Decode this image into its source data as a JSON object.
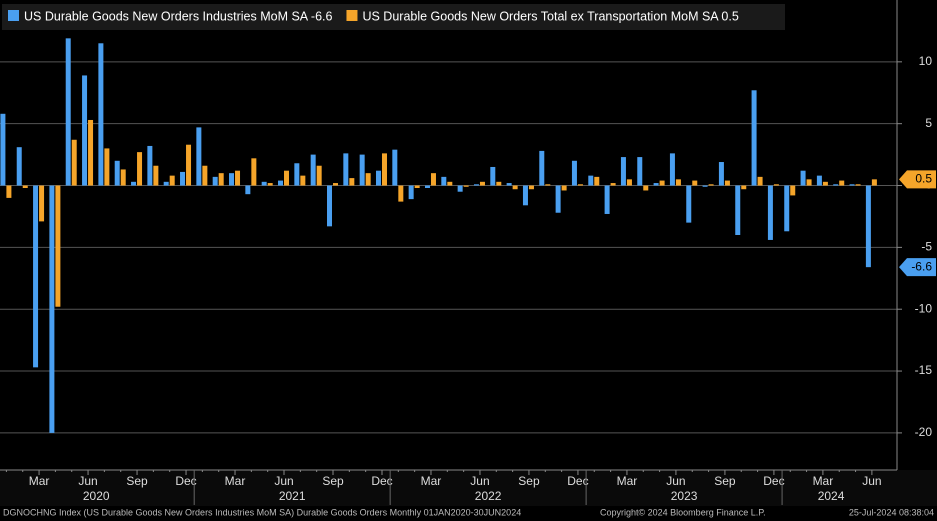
{
  "chart_data": {
    "type": "bar",
    "series": [
      {
        "name": "US Durable Goods New Orders Industries MoM SA -6.6",
        "color": "#4a9ff0",
        "values": [
          5.8,
          3.1,
          -14.7,
          -20,
          11.9,
          8.9,
          11.5,
          2.0,
          0.3,
          3.2,
          0.3,
          1.1,
          4.7,
          0.7,
          1.0,
          -0.7,
          0.3,
          0.4,
          1.8,
          2.5,
          -3.3,
          2.6,
          2.5,
          1.2,
          2.9,
          -1.1,
          -0.2,
          0.7,
          -0.5,
          0.1,
          1.5,
          0.2,
          -1.6,
          2.8,
          -2.2,
          2.0,
          0.8,
          -2.3,
          2.3,
          2.3,
          0.2,
          2.6,
          -3.0,
          -0.1,
          1.9,
          -4.0,
          7.7,
          -4.4,
          -3.7,
          1.2,
          0.8,
          0.1,
          0.1,
          -6.6
        ]
      },
      {
        "name": "US Durable Goods New Orders Total ex Transportation MoM SA 0.5",
        "color": "#f5a52a",
        "values": [
          -1.0,
          -0.2,
          -2.9,
          -9.8,
          3.7,
          5.3,
          3.0,
          1.3,
          2.7,
          1.6,
          0.8,
          3.3,
          1.6,
          1.0,
          1.2,
          2.2,
          0.2,
          1.2,
          0.8,
          1.6,
          0.2,
          0.6,
          1.0,
          2.6,
          -1.3,
          -0.2,
          1.0,
          0.3,
          -0.1,
          0.3,
          0.3,
          -0.3,
          -0.3,
          0.1,
          -0.4,
          0.1,
          0.7,
          0.2,
          0.5,
          -0.4,
          0.4,
          0.5,
          0.4,
          0.1,
          0.4,
          -0.3,
          0.7,
          0.1,
          -0.8,
          0.5,
          0.3,
          0.4,
          0.1,
          0.5
        ]
      }
    ],
    "categories": [
      null,
      null,
      "Mar",
      null,
      null,
      "Jun",
      null,
      null,
      "Sep",
      null,
      null,
      "Dec",
      null,
      null,
      "Mar",
      null,
      null,
      "Jun",
      null,
      null,
      "Sep",
      null,
      null,
      "Dec",
      null,
      null,
      "Mar",
      null,
      null,
      "Jun",
      null,
      null,
      "Sep",
      null,
      null,
      "Dec",
      null,
      null,
      "Mar",
      null,
      null,
      "Jun",
      null,
      null,
      "Sep",
      null,
      null,
      "Dec",
      null,
      null,
      "Mar",
      null,
      null,
      "Jun"
    ],
    "years": [
      "2020",
      "2021",
      "2022",
      "2023",
      "2024"
    ],
    "ylim": [
      -23,
      15
    ],
    "yticks": [
      -20,
      -15,
      -10,
      -5,
      0,
      5,
      10
    ],
    "grid": true,
    "footer": {
      "left": "DGNOCHNG Index (US Durable Goods New Orders Industries MoM SA) Durable Goods Orders  Monthly 01JAN2020-30JUN2024",
      "copyright": "Copyright© 2024 Bloomberg Finance L.P.",
      "timestamp": "25-Jul-2024 08:38:04"
    }
  }
}
